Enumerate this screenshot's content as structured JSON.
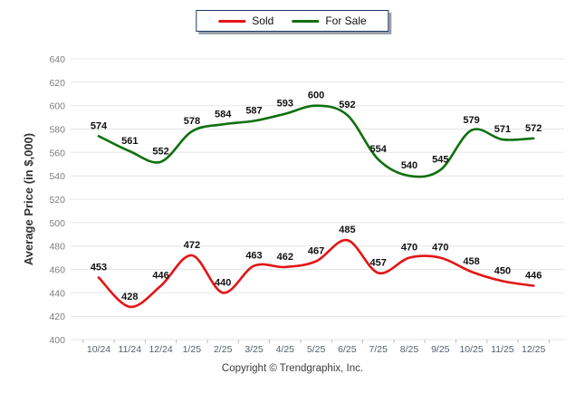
{
  "legend": {
    "items": [
      {
        "label": "Sold",
        "color": "#e31515"
      },
      {
        "label": "For Sale",
        "color": "#0f700f"
      }
    ]
  },
  "chart_data": {
    "type": "line",
    "title": "",
    "x_categories": [
      "10/24",
      "11/24",
      "12/24",
      "1/25",
      "2/25",
      "3/25",
      "4/25",
      "5/25",
      "6/25",
      "7/25",
      "8/25",
      "9/25",
      "10/25",
      "11/25",
      "12/25"
    ],
    "series": [
      {
        "name": "Sold",
        "color": "#e31515",
        "values": [
          453,
          428,
          446,
          472,
          440,
          463,
          462,
          467,
          485,
          457,
          470,
          470,
          458,
          450,
          446
        ]
      },
      {
        "name": "For Sale",
        "color": "#0f700f",
        "values": [
          574,
          561,
          552,
          578,
          584,
          587,
          593,
          600,
          592,
          554,
          540,
          545,
          579,
          571,
          572
        ]
      }
    ],
    "ylabel": "Average Price (in $,000)",
    "xlabel": "",
    "ylim": [
      400,
      640
    ],
    "ytick_step": 20,
    "grid": true,
    "legend_position": "top-center",
    "point_labels": true,
    "colors": {
      "gridline": "#e5e5e5",
      "tick": "#b4c0ca",
      "y_tick_label": "#7d7d7d",
      "x_tick_label": "#51606e",
      "point_label": "#111111",
      "axis_title": "#333333"
    }
  },
  "footer": {
    "copyright": "Copyright © Trendgraphix, Inc."
  }
}
